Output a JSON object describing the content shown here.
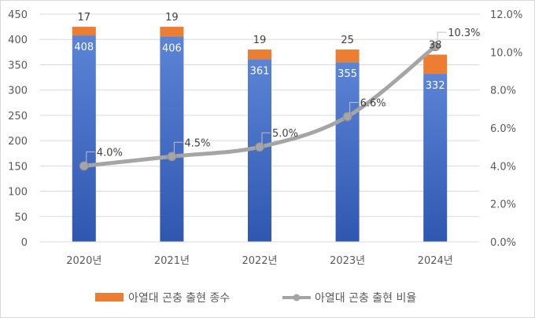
{
  "chart_data": {
    "type": "bar+line",
    "categories": [
      "2020년",
      "2021년",
      "2022년",
      "2023년",
      "2024년"
    ],
    "series": [
      {
        "name": "아열대 곤충 출현 종수",
        "chart": "stacked-bar",
        "axis": "left",
        "stack": [
          {
            "values": [
              408,
              406,
              361,
              355,
              332
            ],
            "color": "#4472c4"
          },
          {
            "values": [
              17,
              19,
              19,
              25,
              38
            ],
            "color": "#ed7d31"
          }
        ],
        "legend_color": "#ed7d31"
      },
      {
        "name": "아열대 곤충 출현 비율",
        "chart": "line",
        "axis": "right",
        "values": [
          4.0,
          4.5,
          5.0,
          6.6,
          10.3
        ],
        "labels": [
          "4.0%",
          "4.5%",
          "5.0%",
          "6.6%",
          "10.3%"
        ],
        "color": "#a5a5a5"
      }
    ],
    "y_left": {
      "range": [
        0,
        450
      ],
      "ticks": [
        0,
        50,
        100,
        150,
        200,
        250,
        300,
        350,
        400,
        450
      ],
      "tick_labels": [
        "0",
        "50",
        "100",
        "150",
        "200",
        "250",
        "300",
        "350",
        "400",
        "450"
      ]
    },
    "y_right": {
      "range": [
        0,
        12
      ],
      "ticks": [
        0,
        2,
        4,
        6,
        8,
        10,
        12
      ],
      "tick_labels": [
        "0.0%",
        "2.0%",
        "4.0%",
        "6.0%",
        "8.0%",
        "10.0%",
        "12.0%"
      ]
    },
    "grid": true,
    "legend_position": "bottom",
    "bar_label_bottom_color": "#ffffff",
    "bar_label_top_color": "#404040",
    "axis_text_color": "#595959",
    "grid_color": "#d9d9d9"
  }
}
